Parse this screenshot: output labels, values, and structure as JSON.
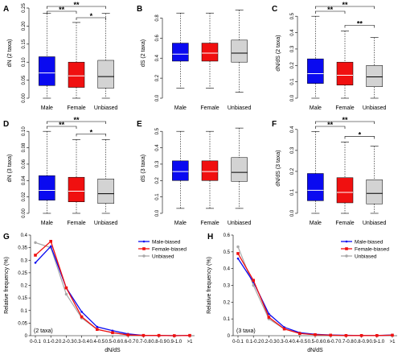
{
  "chart_data": [
    {
      "type": "box",
      "panel": "A",
      "ylabel": "dN (2 taxa)",
      "categories": [
        "Male",
        "Female",
        "Unbiased"
      ],
      "ylim": [
        0,
        0.25
      ],
      "yticks": [
        0.0,
        0.05,
        0.1,
        0.15,
        0.2,
        0.25
      ],
      "ytick_labels": [
        "0.00",
        "0.05",
        "0.10",
        "0.15",
        "0.20",
        "0.25"
      ],
      "boxes": [
        {
          "min": 0,
          "q1": 0.035,
          "median": 0.07,
          "q3": 0.115,
          "max": 0.235,
          "color": "#0a0af0"
        },
        {
          "min": 0,
          "q1": 0.03,
          "median": 0.062,
          "q3": 0.1,
          "max": 0.21,
          "color": "#f01010"
        },
        {
          "min": 0,
          "q1": 0.028,
          "median": 0.06,
          "q3": 0.105,
          "max": 0.235,
          "color": "#d3d3d3"
        }
      ],
      "significance": [
        {
          "from": 0,
          "to": 1,
          "label": "**"
        },
        {
          "from": 0,
          "to": 2,
          "label": "**"
        },
        {
          "from": 1,
          "to": 2,
          "label": "*"
        }
      ]
    },
    {
      "type": "box",
      "panel": "B",
      "ylabel": "dS (2 taxa)",
      "categories": [
        "Male",
        "Female",
        "Unbiased"
      ],
      "ylim": [
        0,
        0.9
      ],
      "yticks": [
        0.0,
        0.2,
        0.4,
        0.6,
        0.8
      ],
      "ytick_labels": [
        "0.0",
        "0.2",
        "0.4",
        "0.6",
        "0.8"
      ],
      "boxes": [
        {
          "min": 0.1,
          "q1": 0.37,
          "median": 0.44,
          "q3": 0.55,
          "max": 0.85,
          "color": "#0a0af0"
        },
        {
          "min": 0.1,
          "q1": 0.37,
          "median": 0.45,
          "q3": 0.55,
          "max": 0.85,
          "color": "#f01010"
        },
        {
          "min": 0.06,
          "q1": 0.36,
          "median": 0.45,
          "q3": 0.58,
          "max": 0.88,
          "color": "#d3d3d3"
        }
      ],
      "significance": []
    },
    {
      "type": "box",
      "panel": "C",
      "ylabel": "dN/dS (2 taxa)",
      "categories": [
        "Male",
        "Female",
        "Unbiased"
      ],
      "ylim": [
        0,
        0.55
      ],
      "yticks": [
        0.0,
        0.1,
        0.2,
        0.3,
        0.4,
        0.5
      ],
      "ytick_labels": [
        "0.0",
        "0.1",
        "0.2",
        "0.3",
        "0.4",
        "0.5"
      ],
      "boxes": [
        {
          "min": 0,
          "q1": 0.09,
          "median": 0.15,
          "q3": 0.24,
          "max": 0.5,
          "color": "#0a0af0"
        },
        {
          "min": 0,
          "q1": 0.08,
          "median": 0.14,
          "q3": 0.22,
          "max": 0.41,
          "color": "#f01010"
        },
        {
          "min": 0,
          "q1": 0.07,
          "median": 0.13,
          "q3": 0.2,
          "max": 0.37,
          "color": "#d3d3d3"
        }
      ],
      "significance": [
        {
          "from": 0,
          "to": 1,
          "label": "**"
        },
        {
          "from": 0,
          "to": 2,
          "label": "**"
        },
        {
          "from": 1,
          "to": 2,
          "label": "**"
        }
      ]
    },
    {
      "type": "box",
      "panel": "D",
      "ylabel": "dN (3 taxa)",
      "categories": [
        "Male",
        "Female",
        "Unbiased"
      ],
      "ylim": [
        0,
        0.11
      ],
      "yticks": [
        0.0,
        0.02,
        0.04,
        0.06,
        0.08,
        0.1
      ],
      "ytick_labels": [
        "0.00",
        "0.02",
        "0.04",
        "0.06",
        "0.08",
        "0.10"
      ],
      "boxes": [
        {
          "min": 0,
          "q1": 0.016,
          "median": 0.028,
          "q3": 0.046,
          "max": 0.1,
          "color": "#0a0af0"
        },
        {
          "min": 0,
          "q1": 0.014,
          "median": 0.027,
          "q3": 0.044,
          "max": 0.09,
          "color": "#f01010"
        },
        {
          "min": 0,
          "q1": 0.012,
          "median": 0.024,
          "q3": 0.042,
          "max": 0.09,
          "color": "#d3d3d3"
        }
      ],
      "significance": [
        {
          "from": 0,
          "to": 1,
          "label": "**"
        },
        {
          "from": 0,
          "to": 2,
          "label": "**"
        },
        {
          "from": 1,
          "to": 2,
          "label": "*"
        }
      ]
    },
    {
      "type": "box",
      "panel": "E",
      "ylabel": "dS (3 taxa)",
      "categories": [
        "Male",
        "Female",
        "Unbiased"
      ],
      "ylim": [
        0,
        0.55
      ],
      "yticks": [
        0.0,
        0.1,
        0.2,
        0.3,
        0.4,
        0.5
      ],
      "ytick_labels": [
        "0.0",
        "0.1",
        "0.2",
        "0.3",
        "0.4",
        "0.5"
      ],
      "boxes": [
        {
          "min": 0.03,
          "q1": 0.2,
          "median": 0.255,
          "q3": 0.32,
          "max": 0.5,
          "color": "#0a0af0"
        },
        {
          "min": 0.03,
          "q1": 0.2,
          "median": 0.255,
          "q3": 0.32,
          "max": 0.5,
          "color": "#f01010"
        },
        {
          "min": 0.03,
          "q1": 0.195,
          "median": 0.25,
          "q3": 0.34,
          "max": 0.52,
          "color": "#d3d3d3"
        }
      ],
      "significance": []
    },
    {
      "type": "box",
      "panel": "F",
      "ylabel": "dN/dS (3 taxa)",
      "categories": [
        "Male",
        "Female",
        "Unbiased"
      ],
      "ylim": [
        0,
        0.43
      ],
      "yticks": [
        0.0,
        0.1,
        0.2,
        0.3,
        0.4
      ],
      "ytick_labels": [
        "0.0",
        "0.1",
        "0.2",
        "0.3",
        "0.4"
      ],
      "boxes": [
        {
          "min": 0,
          "q1": 0.06,
          "median": 0.11,
          "q3": 0.19,
          "max": 0.39,
          "color": "#0a0af0"
        },
        {
          "min": 0,
          "q1": 0.05,
          "median": 0.1,
          "q3": 0.17,
          "max": 0.34,
          "color": "#f01010"
        },
        {
          "min": 0,
          "q1": 0.045,
          "median": 0.095,
          "q3": 0.16,
          "max": 0.32,
          "color": "#d3d3d3"
        }
      ],
      "significance": [
        {
          "from": 0,
          "to": 1,
          "label": "**"
        },
        {
          "from": 0,
          "to": 2,
          "label": "**"
        },
        {
          "from": 1,
          "to": 2,
          "label": "*"
        }
      ]
    },
    {
      "type": "line",
      "panel": "G",
      "note": "(2 taxa)",
      "xlabel": "dN/dS",
      "ylabel": "Relative frequency (%)",
      "categories": [
        "0-0.1",
        "0.1-0.2",
        "0.2-0.3",
        "0.3-0.4",
        "0.4-0.5",
        "0.5-0.6",
        "0.6-0.7",
        "0.7-0.8",
        "0.8-0.9",
        "0.9-1.0",
        ">1"
      ],
      "ylim": [
        0,
        0.4
      ],
      "yticks": [
        0,
        0.05,
        0.1,
        0.15,
        0.2,
        0.25,
        0.3,
        0.35,
        0.4
      ],
      "ytick_labels": [
        "0",
        "0.05",
        "0.1",
        "0.15",
        "0.2",
        "0.25",
        "0.3",
        "0.35",
        "0.4"
      ],
      "legend_position": "top-right",
      "series": [
        {
          "name": "Male-biased",
          "color": "#0a0af0",
          "values": [
            0.29,
            0.355,
            0.19,
            0.095,
            0.035,
            0.02,
            0.007,
            0.001,
            0.001,
            0,
            0.001
          ]
        },
        {
          "name": "Female-biased",
          "color": "#f01010",
          "values": [
            0.32,
            0.375,
            0.19,
            0.075,
            0.025,
            0.012,
            0.003,
            0.001,
            0.001,
            0,
            0.001
          ]
        },
        {
          "name": "Unbiased",
          "color": "#a9a9a9",
          "values": [
            0.37,
            0.35,
            0.165,
            0.07,
            0.025,
            0.012,
            0.004,
            0.001,
            0.001,
            0,
            0.001
          ]
        }
      ]
    },
    {
      "type": "line",
      "panel": "H",
      "note": "(3 taxa)",
      "xlabel": "dN/dS",
      "ylabel": "Relative frequency (%)",
      "categories": [
        "0-0.1",
        "0.1-0.2",
        "0.2-0.3",
        "0.3-0.4",
        "0.4-0.5",
        "0.5-0.6",
        "0.6-0.7",
        "0.7-0.8",
        "0.8-0.9",
        "0.9-1.0",
        ">1"
      ],
      "ylim": [
        0,
        0.6
      ],
      "yticks": [
        0,
        0.1,
        0.2,
        0.3,
        0.4,
        0.5,
        0.6
      ],
      "ytick_labels": [
        "0",
        "0.1",
        "0.2",
        "0.3",
        "0.4",
        "0.5",
        "0.6"
      ],
      "legend_position": "top-right",
      "series": [
        {
          "name": "Male-biased",
          "color": "#0a0af0",
          "values": [
            0.46,
            0.32,
            0.13,
            0.05,
            0.018,
            0.008,
            0.004,
            0.002,
            0.001,
            0.001,
            0.004
          ]
        },
        {
          "name": "Female-biased",
          "color": "#f01010",
          "values": [
            0.49,
            0.33,
            0.11,
            0.04,
            0.013,
            0.006,
            0.003,
            0.001,
            0.001,
            0.001,
            0.003
          ]
        },
        {
          "name": "Unbiased",
          "color": "#a9a9a9",
          "values": [
            0.53,
            0.3,
            0.1,
            0.04,
            0.014,
            0.006,
            0.002,
            0.001,
            0.001,
            0.001,
            0.003
          ]
        }
      ]
    }
  ]
}
